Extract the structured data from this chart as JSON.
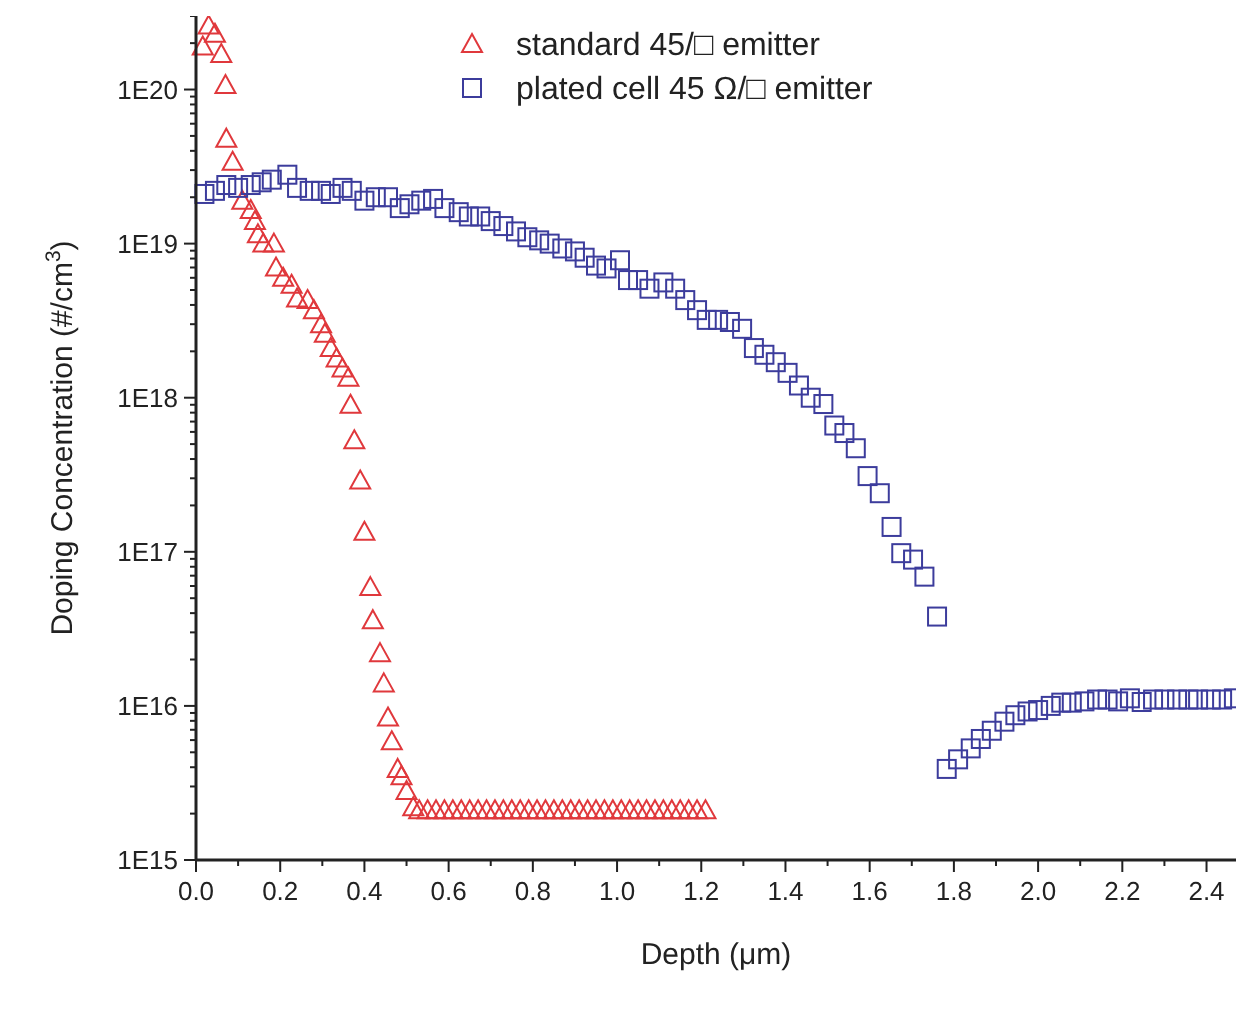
{
  "chart_data": {
    "type": "scatter",
    "xlabel": "Depth (μm)",
    "ylabel": "Doping Concentration (#/cm$^{3}$)",
    "log": "y",
    "legend": "top",
    "xlim": [
      0,
      2.47
    ],
    "ylim": [
      1000000000000000.0,
      3e+20
    ],
    "xticks": [
      {
        "value": 0,
        "label": "0.0"
      },
      {
        "value": 0.1,
        "label": null
      },
      {
        "value": 0.2,
        "label": "0.2"
      },
      {
        "value": 0.3,
        "label": null
      },
      {
        "value": 0.4,
        "label": "0.4"
      },
      {
        "value": 0.5,
        "label": null
      },
      {
        "value": 0.6,
        "label": "0.6"
      },
      {
        "value": 0.7,
        "label": null
      },
      {
        "value": 0.8,
        "label": "0.8"
      },
      {
        "value": 0.9,
        "label": null
      },
      {
        "value": 1.0,
        "label": "1.0"
      },
      {
        "value": 1.1,
        "label": null
      },
      {
        "value": 1.2,
        "label": "1.2"
      },
      {
        "value": 1.3,
        "label": null
      },
      {
        "value": 1.4,
        "label": "1.4"
      },
      {
        "value": 1.5,
        "label": null
      },
      {
        "value": 1.6,
        "label": "1.6"
      },
      {
        "value": 1.7,
        "label": null
      },
      {
        "value": 1.8,
        "label": "1.8"
      },
      {
        "value": 1.9,
        "label": null
      },
      {
        "value": 2.0,
        "label": "2.0"
      },
      {
        "value": 2.1,
        "label": null
      },
      {
        "value": 2.2,
        "label": "2.2"
      },
      {
        "value": 2.3,
        "label": null
      },
      {
        "value": 2.4,
        "label": "2.4"
      }
    ],
    "yticks": [
      {
        "value": 1000000000000000.0,
        "label": "1E15"
      },
      {
        "value": 2000000000000000.0,
        "label": null
      },
      {
        "value": 3000000000000000.0,
        "label": null
      },
      {
        "value": 4000000000000000.0,
        "label": null
      },
      {
        "value": 5000000000000000.0,
        "label": null
      },
      {
        "value": 6000000000000000.0,
        "label": null
      },
      {
        "value": 7000000000000000.0,
        "label": null
      },
      {
        "value": 8000000000000000.0,
        "label": null
      },
      {
        "value": 9000000000000000.0,
        "label": null
      },
      {
        "value": 1e+16,
        "label": "1E16"
      },
      {
        "value": 2e+16,
        "label": null
      },
      {
        "value": 3e+16,
        "label": null
      },
      {
        "value": 4e+16,
        "label": null
      },
      {
        "value": 5e+16,
        "label": null
      },
      {
        "value": 6e+16,
        "label": null
      },
      {
        "value": 7e+16,
        "label": null
      },
      {
        "value": 8e+16,
        "label": null
      },
      {
        "value": 9e+16,
        "label": null
      },
      {
        "value": 1e+17,
        "label": "1E17"
      },
      {
        "value": 2e+17,
        "label": null
      },
      {
        "value": 3e+17,
        "label": null
      },
      {
        "value": 4e+17,
        "label": null
      },
      {
        "value": 5e+17,
        "label": null
      },
      {
        "value": 6e+17,
        "label": null
      },
      {
        "value": 7e+17,
        "label": null
      },
      {
        "value": 8e+17,
        "label": null
      },
      {
        "value": 9e+17,
        "label": null
      },
      {
        "value": 1e+18,
        "label": "1E18"
      },
      {
        "value": 2e+18,
        "label": null
      },
      {
        "value": 3e+18,
        "label": null
      },
      {
        "value": 4e+18,
        "label": null
      },
      {
        "value": 5e+18,
        "label": null
      },
      {
        "value": 6e+18,
        "label": null
      },
      {
        "value": 7e+18,
        "label": null
      },
      {
        "value": 8e+18,
        "label": null
      },
      {
        "value": 9e+18,
        "label": null
      },
      {
        "value": 1e+19,
        "label": "1E19"
      },
      {
        "value": 2e+19,
        "label": null
      },
      {
        "value": 3e+19,
        "label": null
      },
      {
        "value": 4e+19,
        "label": null
      },
      {
        "value": 5e+19,
        "label": null
      },
      {
        "value": 6e+19,
        "label": null
      },
      {
        "value": 7e+19,
        "label": null
      },
      {
        "value": 8e+19,
        "label": null
      },
      {
        "value": 9e+19,
        "label": null
      },
      {
        "value": 1e+20,
        "label": "1E20"
      },
      {
        "value": 2e+20,
        "label": null
      },
      {
        "value": 3e+20,
        "label": null
      }
    ],
    "series": [
      {
        "name": "standard 45/□ emitter",
        "color": "#e0383c",
        "marker": "triangle",
        "x": [
          0.016,
          0.03,
          0.045,
          0.06,
          0.07,
          0.072,
          0.087,
          0.11,
          0.13,
          0.14,
          0.147,
          0.16,
          0.185,
          0.19,
          0.207,
          0.227,
          0.24,
          0.265,
          0.28,
          0.297,
          0.306,
          0.32,
          0.334,
          0.348,
          0.362,
          0.367,
          0.376,
          0.39,
          0.4,
          0.414,
          0.42,
          0.437,
          0.446,
          0.456,
          0.465,
          0.479,
          0.488,
          0.5,
          0.516,
          0.53,
          0.55,
          0.57,
          0.59,
          0.61,
          0.63,
          0.65,
          0.67,
          0.69,
          0.71,
          0.73,
          0.75,
          0.77,
          0.79,
          0.81,
          0.83,
          0.85,
          0.87,
          0.89,
          0.91,
          0.93,
          0.95,
          0.97,
          0.99,
          1.01,
          1.03,
          1.05,
          1.07,
          1.09,
          1.11,
          1.13,
          1.15,
          1.17,
          1.19,
          1.21
        ],
        "values": [
          1.9e+20,
          2.6e+20,
          2.3e+20,
          1.7e+20,
          1.07e+20,
          4.8e+19,
          3.4e+19,
          1.9e+19,
          1.65e+19,
          1.4e+19,
          1.15e+19,
          1e+19,
          1e+19,
          7e+18,
          6e+18,
          5.4e+18,
          4.4e+18,
          4.3e+18,
          3.7e+18,
          3e+18,
          2.6e+18,
          2.1e+18,
          1.8e+18,
          1.55e+18,
          1.35e+18,
          9e+17,
          5.3e+17,
          2.9e+17,
          1.35e+17,
          5.9e+16,
          3.6e+16,
          2.2e+16,
          1.4e+16,
          8400000000000000.0,
          5900000000000000.0,
          3900000000000000.0,
          3500000000000000.0,
          2800000000000000.0,
          2200000000000000.0,
          2100000000000000.0,
          2100000000000000.0,
          2100000000000000.0,
          2100000000000000.0,
          2100000000000000.0,
          2100000000000000.0,
          2100000000000000.0,
          2100000000000000.0,
          2100000000000000.0,
          2100000000000000.0,
          2100000000000000.0,
          2100000000000000.0,
          2100000000000000.0,
          2100000000000000.0,
          2100000000000000.0,
          2100000000000000.0,
          2100000000000000.0,
          2100000000000000.0,
          2100000000000000.0,
          2100000000000000.0,
          2100000000000000.0,
          2100000000000000.0,
          2100000000000000.0,
          2100000000000000.0,
          2100000000000000.0,
          2100000000000000.0,
          2100000000000000.0,
          2100000000000000.0,
          2100000000000000.0,
          2100000000000000.0,
          2100000000000000.0,
          2100000000000000.0,
          2100000000000000.0,
          2100000000000000.0,
          2100000000000000.0
        ]
      },
      {
        "name": "plated cell 45 Ω/□  emitter",
        "color": "#3c3c9c",
        "marker": "square",
        "x": [
          0.02,
          0.045,
          0.072,
          0.1,
          0.13,
          0.156,
          0.18,
          0.217,
          0.24,
          0.27,
          0.297,
          0.32,
          0.348,
          0.37,
          0.4,
          0.427,
          0.456,
          0.484,
          0.507,
          0.535,
          0.563,
          0.59,
          0.624,
          0.648,
          0.675,
          0.7,
          0.73,
          0.76,
          0.787,
          0.815,
          0.84,
          0.87,
          0.9,
          0.923,
          0.95,
          0.975,
          1.007,
          1.026,
          1.05,
          1.077,
          1.11,
          1.138,
          1.162,
          1.19,
          1.213,
          1.24,
          1.268,
          1.297,
          1.325,
          1.35,
          1.377,
          1.405,
          1.432,
          1.46,
          1.49,
          1.516,
          1.54,
          1.567,
          1.595,
          1.624,
          1.652,
          1.675,
          1.703,
          1.73,
          1.76,
          1.783,
          1.81,
          1.84,
          1.864,
          1.89,
          1.92,
          1.946,
          1.975,
          2.0,
          2.03,
          2.055,
          2.08,
          2.11,
          2.14,
          2.165,
          2.19,
          2.218,
          2.246,
          2.273,
          2.3,
          2.33,
          2.357,
          2.38,
          2.41,
          2.437,
          2.465
        ],
        "values": [
          2.1e+19,
          2.2e+19,
          2.4e+19,
          2.3e+19,
          2.4e+19,
          2.5e+19,
          2.6e+19,
          2.8e+19,
          2.3e+19,
          2.2e+19,
          2.2e+19,
          2.1e+19,
          2.3e+19,
          2.2e+19,
          1.9e+19,
          2e+19,
          2e+19,
          1.7e+19,
          1.8e+19,
          1.9e+19,
          1.95e+19,
          1.7e+19,
          1.6e+19,
          1.5e+19,
          1.5e+19,
          1.4e+19,
          1.3e+19,
          1.2e+19,
          1.1e+19,
          1.05e+19,
          1e+19,
          9.3e+18,
          8.9e+18,
          8.1e+18,
          7.2e+18,
          6.9e+18,
          7.8e+18,
          5.8e+18,
          5.8e+18,
          5.1e+18,
          5.6e+18,
          5.1e+18,
          4.3e+18,
          3.7e+18,
          3.2e+18,
          3.2e+18,
          3.1e+18,
          2.8e+18,
          2.1e+18,
          1.9e+18,
          1.7e+18,
          1.45e+18,
          1.2e+18,
          1e+18,
          9.1e+17,
          6.6e+17,
          5.9e+17,
          4.7e+17,
          3.1e+17,
          2.4e+17,
          1.45e+17,
          9.8e+16,
          8.9e+16,
          6.9e+16,
          3.8e+16,
          3900000000000000.0,
          4500000000000000.0,
          5300000000000000.0,
          6100000000000000.0,
          6900000000000000.0,
          7900000000000000.0,
          8700000000000000.0,
          9200000000000000.0,
          9400000000000000.0,
          1e+16,
          1.05e+16,
          1.05e+16,
          1.07e+16,
          1.1e+16,
          1.1e+16,
          1.07e+16,
          1.12e+16,
          1.06e+16,
          1.1e+16,
          1.1e+16,
          1.1e+16,
          1.1e+16,
          1.1e+16,
          1.1e+16,
          1.1e+16,
          1.12e+16
        ]
      }
    ]
  }
}
